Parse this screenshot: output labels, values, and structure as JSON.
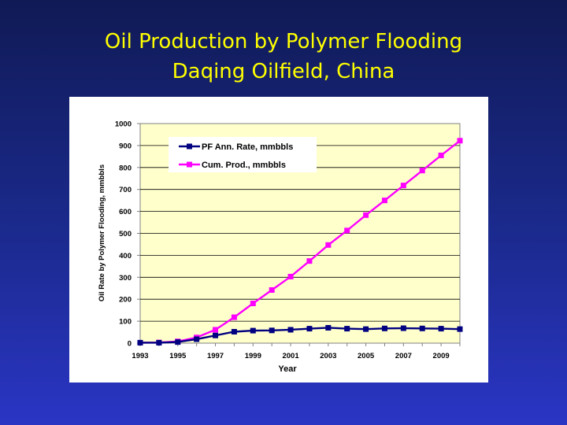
{
  "slide": {
    "title_line1": "Oil Production by Polymer Flooding",
    "title_line2": "Daqing Oilfield, China"
  },
  "colors": {
    "title": "#ffff00",
    "plot_background": "#ffffcc",
    "series_annual": "#000080",
    "series_cumulative": "#ff00ff"
  },
  "chart_data": {
    "type": "line",
    "title": "",
    "xlabel": "Year",
    "ylabel": "Oil Rate by Polymer Flooding, mmbbls",
    "xlim": [
      1993,
      2010
    ],
    "ylim": [
      0,
      1000
    ],
    "x_ticks": [
      "1993",
      "1995",
      "1997",
      "1999",
      "2001",
      "2003",
      "2005",
      "2007",
      "2009"
    ],
    "y_ticks": [
      "0",
      "100",
      "200",
      "300",
      "400",
      "500",
      "600",
      "700",
      "800",
      "900",
      "1000"
    ],
    "grid": "horizontal",
    "legend_position": "top-left",
    "x": [
      1993,
      1994,
      1995,
      1996,
      1997,
      1998,
      1999,
      2000,
      2001,
      2002,
      2003,
      2004,
      2005,
      2006,
      2007,
      2008,
      2009,
      2010
    ],
    "series": [
      {
        "name": "PF Ann. Rate, mmbbls",
        "marker": "square",
        "values": [
          2,
          2,
          5,
          18,
          35,
          52,
          57,
          58,
          61,
          66,
          70,
          66,
          64,
          67,
          68,
          67,
          66,
          64
        ]
      },
      {
        "name": "Cum. Prod., mmbbls",
        "marker": "square",
        "values": [
          2,
          3,
          8,
          26,
          61,
          118,
          181,
          242,
          303,
          374,
          447,
          513,
          583,
          650,
          718,
          786,
          855,
          922
        ]
      }
    ]
  }
}
